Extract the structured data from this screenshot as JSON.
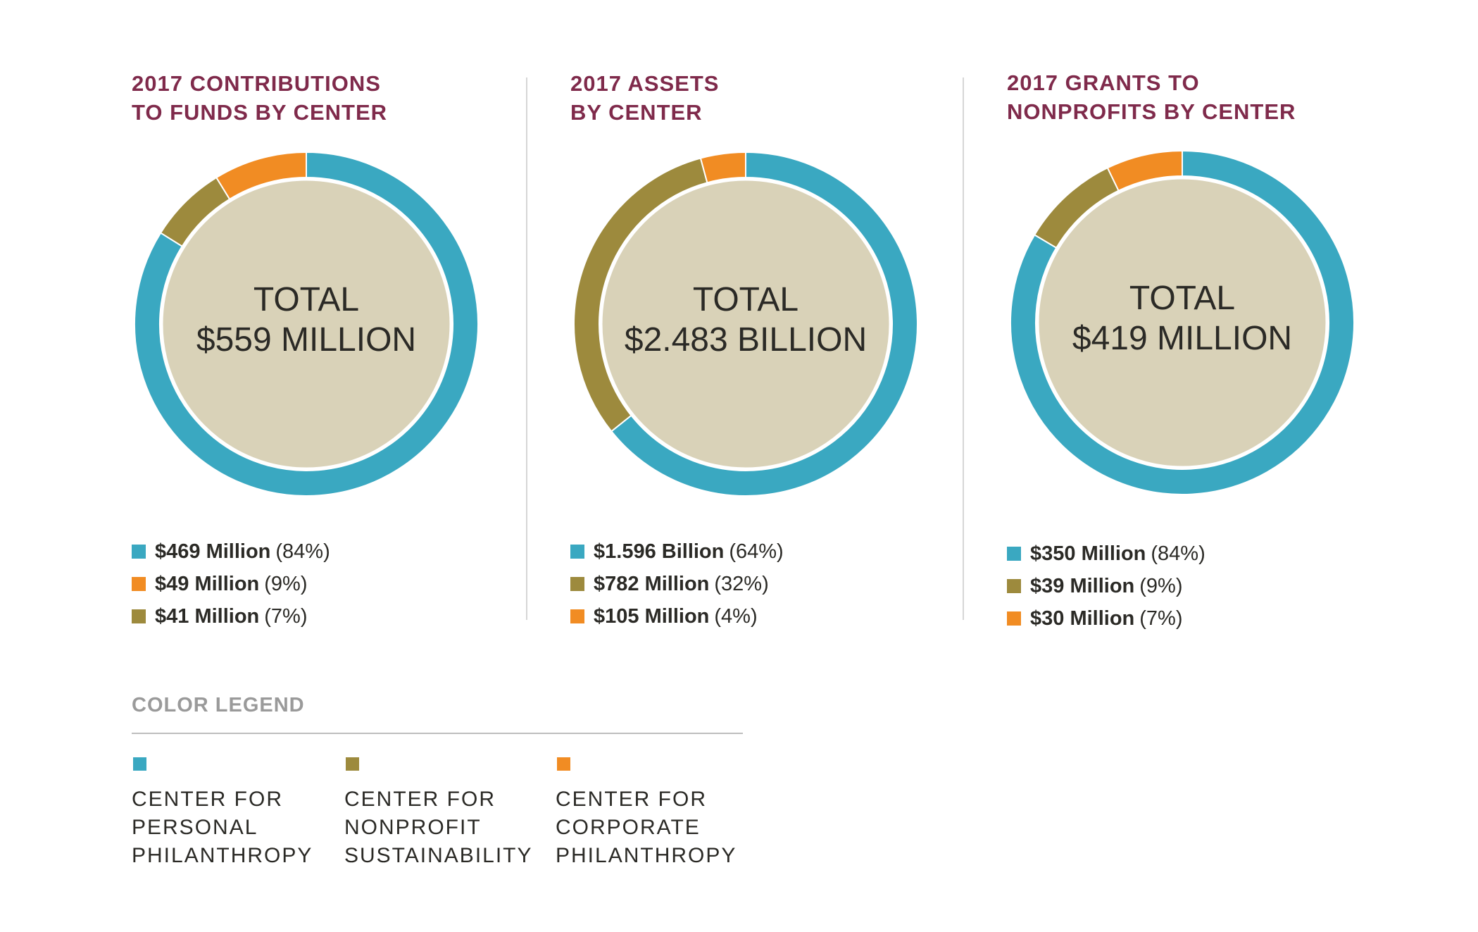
{
  "colors": {
    "personal": "#3aa8c1",
    "nonprofit": "#9d8a3d",
    "corporate": "#f18c23",
    "center_fill": "#d9d2b8",
    "title": "#7f2a4b"
  },
  "chart_data": [
    {
      "type": "pie",
      "style": "donut",
      "title": "2017 CONTRIBUTIONS TO FUNDS BY CENTER",
      "title_lines": [
        "2017 CONTRIBUTIONS",
        "TO FUNDS BY CENTER"
      ],
      "center_label": [
        "TOTAL",
        "$559 MILLION"
      ],
      "slices": [
        {
          "category": "Center for Personal Philanthropy",
          "key": "personal",
          "value": 469,
          "percent": 84,
          "amount_label": "$469 Million",
          "percent_label": "(84%)"
        },
        {
          "category": "Center for Corporate Philanthropy",
          "key": "corporate",
          "value": 49,
          "percent": 9,
          "amount_label": "$49 Million",
          "percent_label": "(9%)"
        },
        {
          "category": "Center for Nonprofit Sustainability",
          "key": "nonprofit",
          "value": 41,
          "percent": 7,
          "amount_label": "$41 Million",
          "percent_label": "(7%)"
        }
      ],
      "ring_order": [
        "personal",
        "nonprofit",
        "corporate"
      ]
    },
    {
      "type": "pie",
      "style": "donut",
      "title": "2017 ASSETS BY CENTER",
      "title_lines": [
        "2017 ASSETS",
        "BY CENTER"
      ],
      "center_label": [
        "TOTAL",
        "$2.483 BILLION"
      ],
      "slices": [
        {
          "category": "Center for Personal Philanthropy",
          "key": "personal",
          "value": 1596,
          "percent": 64,
          "amount_label": "$1.596 Billion",
          "percent_label": "(64%)"
        },
        {
          "category": "Center for Nonprofit Sustainability",
          "key": "nonprofit",
          "value": 782,
          "percent": 32,
          "amount_label": "$782 Million",
          "percent_label": "(32%)"
        },
        {
          "category": "Center for Corporate Philanthropy",
          "key": "corporate",
          "value": 105,
          "percent": 4,
          "amount_label": "$105 Million",
          "percent_label": "(4%)"
        }
      ],
      "ring_order": [
        "personal",
        "nonprofit",
        "corporate"
      ]
    },
    {
      "type": "pie",
      "style": "donut",
      "title": "2017 GRANTS TO NONPROFITS BY CENTER",
      "title_lines": [
        "2017 GRANTS TO",
        "NONPROFITS BY CENTER"
      ],
      "center_label": [
        "TOTAL",
        "$419 MILLION"
      ],
      "slices": [
        {
          "category": "Center for Personal Philanthropy",
          "key": "personal",
          "value": 350,
          "percent": 84,
          "amount_label": "$350 Million",
          "percent_label": "(84%)"
        },
        {
          "category": "Center for Nonprofit Sustainability",
          "key": "nonprofit",
          "value": 39,
          "percent": 9,
          "amount_label": "$39 Million",
          "percent_label": "(9%)"
        },
        {
          "category": "Center for Corporate Philanthropy",
          "key": "corporate",
          "value": 30,
          "percent": 7,
          "amount_label": "$30 Million",
          "percent_label": "(7%)"
        }
      ],
      "ring_order": [
        "personal",
        "nonprofit",
        "corporate"
      ]
    }
  ],
  "legend": {
    "title": "COLOR LEGEND",
    "items": [
      {
        "key": "personal",
        "lines": [
          "CENTER FOR",
          "PERSONAL",
          "PHILANTHROPY"
        ]
      },
      {
        "key": "nonprofit",
        "lines": [
          "CENTER FOR",
          "NONPROFIT",
          "SUSTAINABILITY"
        ]
      },
      {
        "key": "corporate",
        "lines": [
          "CENTER FOR",
          "CORPORATE",
          "PHILANTHROPY"
        ]
      }
    ]
  }
}
